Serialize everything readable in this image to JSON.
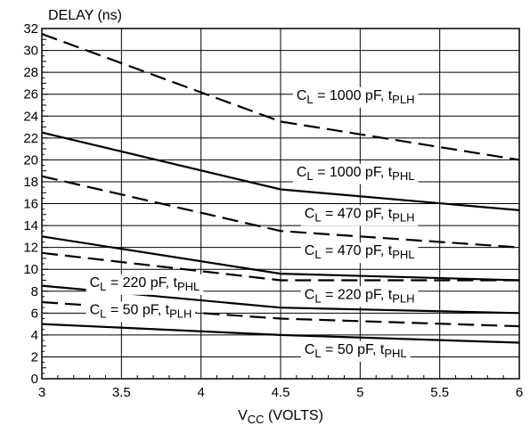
{
  "chart_data": {
    "type": "line",
    "ylabel": "DELAY (ns)",
    "xlabel_main": "V",
    "xlabel_sub": "CC",
    "xlabel_rest": " (VOLTS)",
    "xlim": [
      3,
      6
    ],
    "ylim": [
      0,
      32
    ],
    "x_ticks": [
      "3",
      "3.5",
      "4",
      "4.5",
      "5",
      "5.5",
      "6"
    ],
    "y_ticks": [
      "0",
      "2",
      "4",
      "6",
      "8",
      "10",
      "12",
      "14",
      "16",
      "18",
      "20",
      "22",
      "24",
      "26",
      "28",
      "30",
      "32"
    ],
    "grid": true,
    "series": [
      {
        "name": "CL = 1000 pF, tPLH",
        "style": "dashed",
        "x": [
          3,
          4.5,
          6
        ],
        "values": [
          31.5,
          23.5,
          20
        ]
      },
      {
        "name": "CL = 1000 pF, tPHL",
        "style": "solid",
        "x": [
          3,
          4.5,
          6
        ],
        "values": [
          22.5,
          17.3,
          15.4
        ]
      },
      {
        "name": "CL = 470 pF, tPLH",
        "style": "dashed",
        "x": [
          3,
          4.5,
          6
        ],
        "values": [
          18.5,
          13.5,
          12
        ]
      },
      {
        "name": "CL = 470 pF, tPHL",
        "style": "solid",
        "x": [
          3,
          4.5,
          6
        ],
        "values": [
          13,
          9.6,
          9
        ]
      },
      {
        "name": "CL = 220 pF, tPLH",
        "style": "dashed",
        "x": [
          3,
          4.5,
          6
        ],
        "values": [
          11.5,
          9,
          9
        ]
      },
      {
        "name": "CL = 220 pF, tPHL",
        "style": "solid",
        "x": [
          3,
          4.5,
          6
        ],
        "values": [
          8.5,
          6.5,
          6
        ]
      },
      {
        "name": "CL = 50 pF, tPLH",
        "style": "dashed",
        "x": [
          3,
          4.5,
          6
        ],
        "values": [
          7,
          5.5,
          4.8
        ]
      },
      {
        "name": "CL = 50 pF, tPHL",
        "style": "solid",
        "x": [
          3,
          4.5,
          6
        ],
        "values": [
          5,
          4,
          3.3
        ]
      }
    ],
    "annotations": [
      {
        "main": "C",
        "sub1": "L",
        "mid": " = 1000 pF, t",
        "sub2": "PLH",
        "x": 4.6,
        "y": 25.5
      },
      {
        "main": "C",
        "sub1": "L",
        "mid": " = 1000 pF, t",
        "sub2": "PHL",
        "x": 4.6,
        "y": 18.5
      },
      {
        "main": "C",
        "sub1": "L",
        "mid": " = 470 pF, t",
        "sub2": "PLH",
        "x": 4.65,
        "y": 14.7
      },
      {
        "main": "C",
        "sub1": "L",
        "mid": " = 470 pF, t",
        "sub2": "PHL",
        "x": 4.65,
        "y": 11.3
      },
      {
        "main": "C",
        "sub1": "L",
        "mid": " = 220 pF, t",
        "sub2": "PHL",
        "x": 3.3,
        "y": 8.4
      },
      {
        "main": "C",
        "sub1": "L",
        "mid": " = 220 pF, t",
        "sub2": "PLH",
        "x": 4.65,
        "y": 7.3
      },
      {
        "main": "C",
        "sub1": "L",
        "mid": " = 50 pF, t",
        "sub2": "PLH",
        "x": 3.3,
        "y": 5.9
      },
      {
        "main": "C",
        "sub1": "L",
        "mid": " = 50 pF, t",
        "sub2": "PHL",
        "x": 4.65,
        "y": 2.3
      }
    ]
  }
}
